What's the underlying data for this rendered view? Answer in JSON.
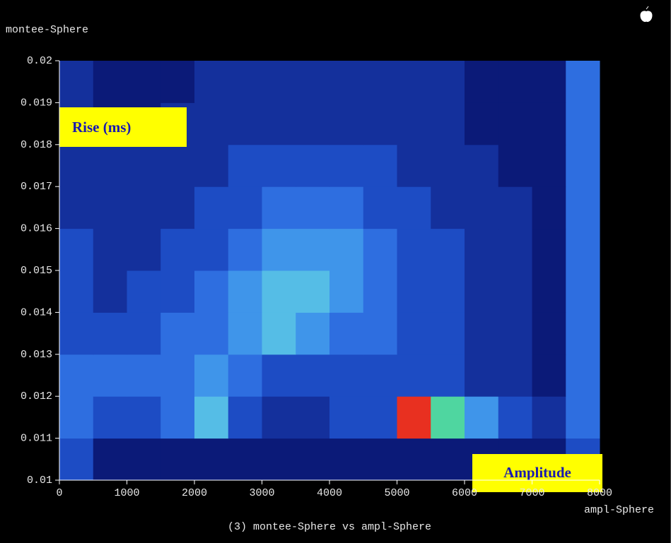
{
  "chart_data": {
    "type": "heatmap",
    "title": "(3) montee-Sphere vs ampl-Sphere",
    "x_label": "ampl-Sphere",
    "y_label": "montee-Sphere",
    "annotations": [
      "Rise (ms)",
      "Amplitude"
    ],
    "xlim": [
      0,
      8000
    ],
    "ylim": [
      0.01,
      0.02
    ],
    "xticks": [
      0,
      1000,
      2000,
      3000,
      4000,
      5000,
      6000,
      7000,
      8000
    ],
    "yticks": [
      0.01,
      0.011,
      0.012,
      0.013,
      0.014,
      0.015,
      0.016,
      0.017,
      0.018,
      0.019,
      0.02
    ],
    "xbins": [
      0,
      500,
      1000,
      1500,
      2000,
      2500,
      3000,
      3500,
      4000,
      4500,
      5000,
      5500,
      6000,
      6500,
      7000,
      7500,
      8000
    ],
    "ybins": [
      0.01,
      0.011,
      0.012,
      0.013,
      0.014,
      0.015,
      0.016,
      0.017,
      0.018,
      0.019,
      0.02
    ],
    "z": [
      [
        3,
        1,
        1,
        1,
        1,
        1,
        1,
        1,
        1,
        1,
        1,
        1,
        1,
        1,
        1,
        3
      ],
      [
        4,
        3,
        3,
        4,
        6,
        3,
        2,
        2,
        3,
        3,
        9,
        7,
        5,
        3,
        2,
        4
      ],
      [
        4,
        4,
        4,
        4,
        5,
        4,
        3,
        3,
        3,
        3,
        3,
        3,
        2,
        2,
        1,
        4
      ],
      [
        3,
        3,
        3,
        4,
        4,
        5,
        6,
        5,
        4,
        4,
        3,
        3,
        2,
        2,
        1,
        4
      ],
      [
        3,
        2,
        3,
        3,
        4,
        5,
        6,
        6,
        5,
        4,
        3,
        3,
        2,
        2,
        1,
        4
      ],
      [
        3,
        2,
        2,
        3,
        3,
        4,
        5,
        5,
        5,
        4,
        3,
        3,
        2,
        2,
        1,
        4
      ],
      [
        2,
        2,
        2,
        2,
        3,
        3,
        4,
        4,
        4,
        3,
        3,
        2,
        2,
        2,
        1,
        4
      ],
      [
        2,
        2,
        2,
        2,
        2,
        3,
        3,
        3,
        3,
        3,
        2,
        2,
        2,
        1,
        1,
        4
      ],
      [
        2,
        1,
        1,
        2,
        2,
        2,
        2,
        2,
        2,
        2,
        2,
        2,
        1,
        1,
        1,
        4
      ],
      [
        2,
        1,
        1,
        1,
        2,
        2,
        2,
        2,
        2,
        2,
        2,
        2,
        1,
        1,
        1,
        4
      ]
    ],
    "colorscale": [
      "#000000",
      "#0b1a78",
      "#14309c",
      "#1d4cc4",
      "#2e6ee0",
      "#3f95ea",
      "#55bde6",
      "#4fd6a0",
      "#d8e040",
      "#e83020"
    ]
  }
}
